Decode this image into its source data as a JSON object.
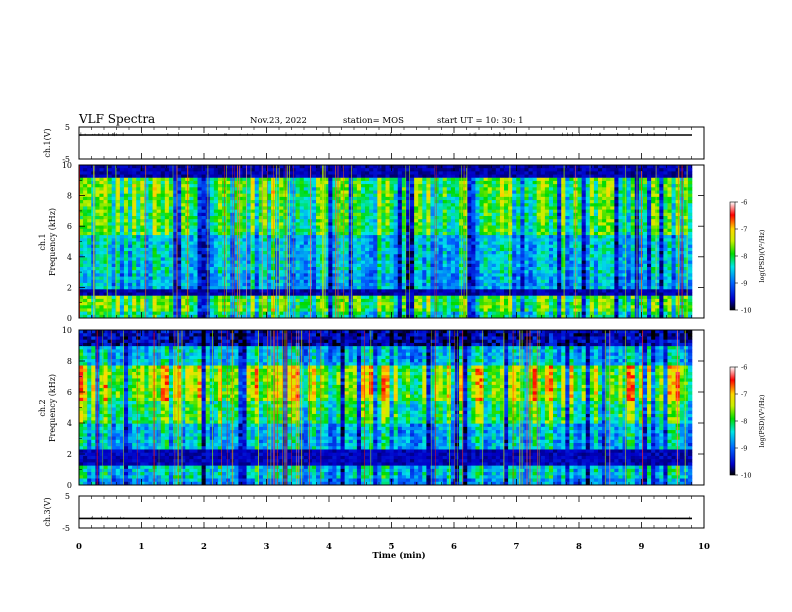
{
  "header": {
    "title": "VLF Spectra",
    "date": "Nov.23, 2022",
    "station": "station= MOS",
    "start_ut": "start  UT =   10: 30: 1"
  },
  "chart_data": [
    {
      "id": "ch1-waveform",
      "type": "line",
      "ylabel": "ch.1(V)",
      "ylim": [
        -5,
        5
      ],
      "y_ticks": [
        "5",
        "-5"
      ],
      "baseline": 2.5,
      "color": "#000000"
    },
    {
      "id": "ch1-spectrogram",
      "type": "heatmap",
      "ylabel": "ch.1\nFrequency  (kHz)",
      "ylim": [
        0,
        10
      ],
      "y_ticks": [
        "0",
        "2",
        "4",
        "6",
        "8",
        "10"
      ],
      "xlim": [
        0,
        10
      ],
      "bands": [
        {
          "from": 0,
          "to": 0.5,
          "level": 0.5
        },
        {
          "from": 0.5,
          "to": 1.4,
          "level": 0.62
        },
        {
          "from": 1.4,
          "to": 1.8,
          "level": 0.05
        },
        {
          "from": 1.8,
          "to": 3.0,
          "level": 0.38
        },
        {
          "from": 3.0,
          "to": 5.5,
          "level": 0.42
        },
        {
          "from": 5.5,
          "to": 8.0,
          "level": 0.58
        },
        {
          "from": 8.0,
          "to": 9.1,
          "level": 0.62
        },
        {
          "from": 9.1,
          "to": 10,
          "level": 0.05
        }
      ]
    },
    {
      "id": "ch2-spectrogram",
      "type": "heatmap",
      "ylabel": "ch.2\nFrequency  (kHz)",
      "ylim": [
        0,
        10
      ],
      "y_ticks": [
        "0",
        "2",
        "4",
        "6",
        "8",
        "10"
      ],
      "xlim": [
        0,
        10
      ],
      "bands": [
        {
          "from": 0,
          "to": 0.5,
          "level": 0.35
        },
        {
          "from": 0.5,
          "to": 1.2,
          "level": 0.45
        },
        {
          "from": 1.2,
          "to": 2.3,
          "level": 0.06
        },
        {
          "from": 2.3,
          "to": 4.0,
          "level": 0.42
        },
        {
          "from": 4.0,
          "to": 5.5,
          "level": 0.58
        },
        {
          "from": 5.5,
          "to": 7.8,
          "level": 0.72
        },
        {
          "from": 7.8,
          "to": 9.0,
          "level": 0.42
        },
        {
          "from": 9.0,
          "to": 10,
          "level": 0.12
        }
      ]
    },
    {
      "id": "ch3-waveform",
      "type": "line",
      "ylabel": "ch.3(V)",
      "ylim": [
        -5,
        5
      ],
      "y_ticks": [
        "5",
        "-5"
      ],
      "baseline": -2.0,
      "color": "#000000"
    }
  ],
  "x_axis": {
    "label": "Time  (min)",
    "range": [
      0,
      10
    ],
    "ticks": [
      "0",
      "1",
      "2",
      "3",
      "4",
      "5",
      "6",
      "7",
      "8",
      "9",
      "10"
    ]
  },
  "colorbar": {
    "label": "log(PSD)(V²/Hz)",
    "range": [
      -10,
      -6
    ],
    "ticks": [
      "-6",
      "-7",
      "-8",
      "-9",
      "-10"
    ]
  },
  "colors": {
    "scale": [
      "#000000",
      "#0000c8",
      "#0064ff",
      "#00e6e6",
      "#00dc00",
      "#c8f000",
      "#ffd700",
      "#ff0000",
      "#ffffff"
    ]
  }
}
